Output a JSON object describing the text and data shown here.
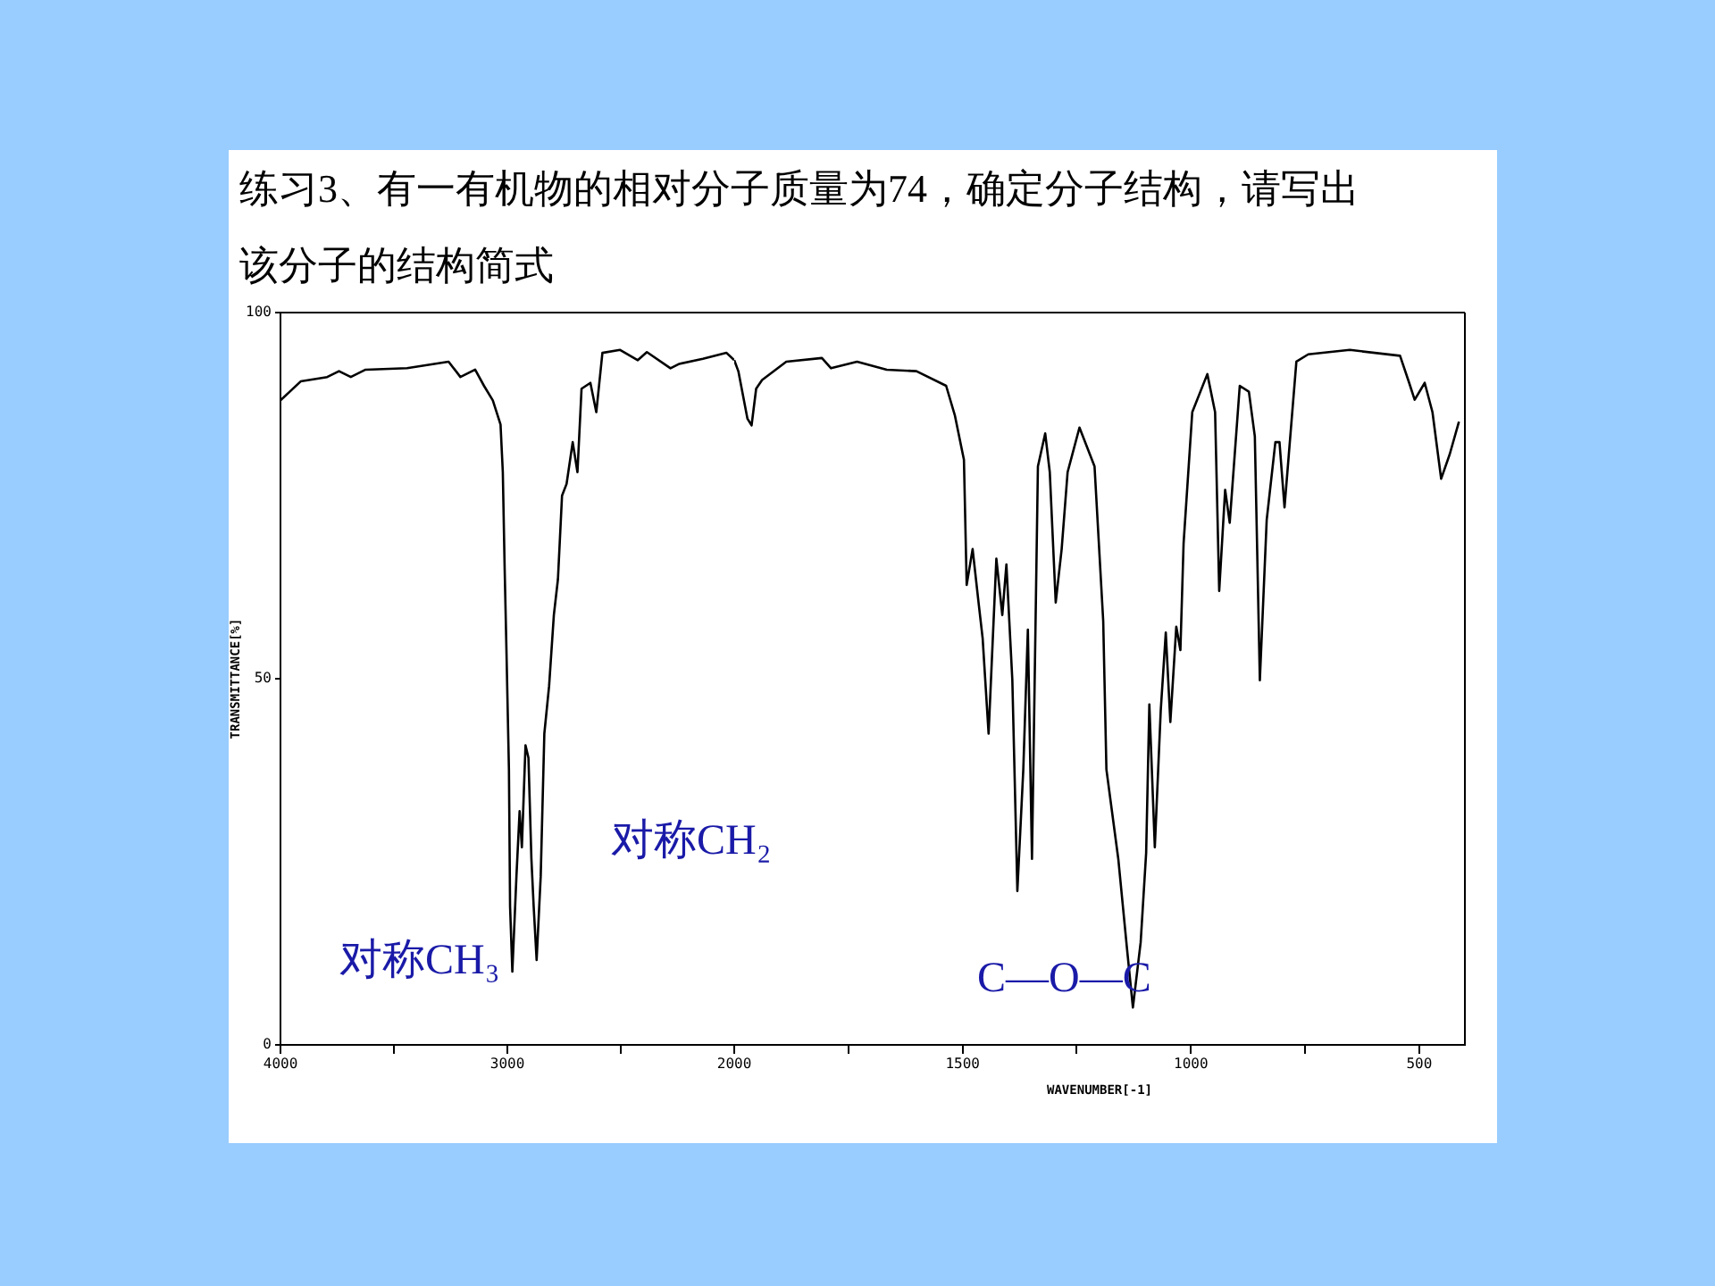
{
  "chart_data": [
    {
      "type": "line",
      "title": "练习3、有一有机物的相对分子质量为74，确定分子结构，请写出该分子的结构简式",
      "ylabel": "TRANSMITTANCE[%]",
      "xlim": [
        4000,
        2000
      ],
      "xticks": [
        4000,
        {
          "value": 3500,
          "label": null
        },
        3000,
        {
          "value": 2500,
          "label": null
        },
        2000
      ],
      "ylim": [
        0,
        100
      ],
      "yticks": [
        0,
        50,
        100
      ],
      "grid": false,
      "legend": false,
      "marker": "none",
      "line_style": "solid",
      "annotations": [
        "对称CH₃",
        "对称CH₂"
      ],
      "series": [
        {
          "color": "#000000",
          "x": [
            4000,
            3911,
            3794,
            3742,
            3690,
            3625,
            3442,
            3259,
            3207,
            3142,
            3103,
            3064,
            3030,
            3020,
            3012,
            3004,
            2993,
            2988,
            2978,
            2960,
            2946,
            2936,
            2920,
            2907,
            2894,
            2884,
            2871,
            2853,
            2837,
            2816,
            2795,
            2777,
            2759,
            2739,
            2712,
            2691,
            2673,
            2634,
            2608,
            2581,
            2503,
            2425,
            2385,
            2281,
            2242,
            2138,
            2034,
            2000
          ],
          "values": [
            88,
            90.6,
            91.2,
            92,
            91.2,
            92.2,
            92.4,
            93.3,
            91.2,
            92.2,
            90,
            88,
            84.7,
            78.2,
            65.2,
            53.9,
            37.6,
            18.9,
            10,
            23,
            31.9,
            27,
            40.9,
            39.2,
            25.4,
            18.9,
            11.6,
            23,
            42.5,
            49,
            58.7,
            63.6,
            75,
            76.6,
            82.3,
            78.2,
            89.6,
            90.4,
            86.4,
            94.5,
            94.9,
            93.5,
            94.6,
            92.4,
            93,
            93.7,
            94.5,
            93.5
          ]
        }
      ]
    },
    {
      "type": "line",
      "xlabel": "WAVENUMBER[-1]",
      "xlim": [
        2000,
        400
      ],
      "xticks": [
        {
          "value": 1750,
          "label": null
        },
        1500,
        {
          "value": 1250,
          "label": null
        },
        1000,
        {
          "value": 750,
          "label": null
        },
        500
      ],
      "ylim": [
        0,
        100
      ],
      "tick_labels": "x",
      "grid": false,
      "legend": false,
      "marker": "none",
      "line_style": "solid",
      "annotations": [
        "C—O—C"
      ],
      "series": [
        {
          "color": "#000000",
          "x": [
            2000,
            1991,
            1971,
            1962,
            1952,
            1939,
            1886,
            1808,
            1788,
            1731,
            1666,
            1601,
            1536,
            1517,
            1497,
            1491,
            1478,
            1465,
            1456,
            1443,
            1426,
            1413,
            1404,
            1391,
            1380,
            1367,
            1357,
            1348,
            1335,
            1319,
            1309,
            1296,
            1283,
            1270,
            1244,
            1211,
            1192,
            1185,
            1159,
            1140,
            1127,
            1110,
            1098,
            1091,
            1079,
            1066,
            1055,
            1045,
            1032,
            1023,
            1016,
            997,
            964,
            947,
            938,
            925,
            915,
            893,
            873,
            860,
            849,
            834,
            815,
            806,
            795,
            769,
            743,
            652,
            542,
            522,
            510,
            488,
            471,
            452,
            433,
            413
          ],
          "values": [
            93.5,
            92,
            85.5,
            84.6,
            89.6,
            90.8,
            93.3,
            93.8,
            92.4,
            93.3,
            92.2,
            92,
            90,
            86,
            79.9,
            62.8,
            67.7,
            60.4,
            55.5,
            42.5,
            66.4,
            58.7,
            65.6,
            49.8,
            21,
            37.6,
            56.7,
            25.4,
            79,
            83.5,
            78.2,
            60.4,
            67.7,
            78.2,
            84.3,
            79,
            57.9,
            37.6,
            25.4,
            13.2,
            5.1,
            14,
            26.2,
            46.5,
            27,
            45.7,
            56.3,
            44.1,
            57.1,
            53.9,
            68.5,
            86.4,
            91.6,
            86.4,
            62,
            75.8,
            71.3,
            90,
            89.2,
            83.1,
            49.8,
            71.7,
            82.3,
            82.3,
            73.4,
            93.3,
            94.3,
            94.9,
            94.1,
            90.4,
            88.1,
            90.4,
            86.4,
            77.3,
            80.7,
            85.1
          ]
        }
      ]
    }
  ]
}
